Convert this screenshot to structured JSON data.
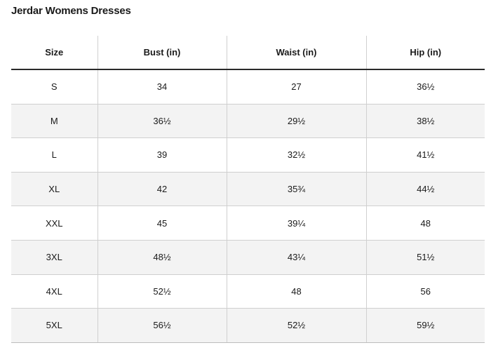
{
  "title": "Jerdar Womens Dresses",
  "table": {
    "headers": [
      "Size",
      "Bust (in)",
      "Waist (in)",
      "Hip (in)"
    ],
    "rows": [
      [
        "S",
        "34",
        "27",
        "36½"
      ],
      [
        "M",
        "36½",
        "29½",
        "38½"
      ],
      [
        "L",
        "39",
        "32½",
        "41½"
      ],
      [
        "XL",
        "42",
        "35¾",
        "44½"
      ],
      [
        "XXL",
        "45",
        "39¼",
        "48"
      ],
      [
        "3XL",
        "48½",
        "43¼",
        "51½"
      ],
      [
        "4XL",
        "52½",
        "48",
        "56"
      ],
      [
        "5XL",
        "56½",
        "52½",
        "59½"
      ]
    ]
  }
}
